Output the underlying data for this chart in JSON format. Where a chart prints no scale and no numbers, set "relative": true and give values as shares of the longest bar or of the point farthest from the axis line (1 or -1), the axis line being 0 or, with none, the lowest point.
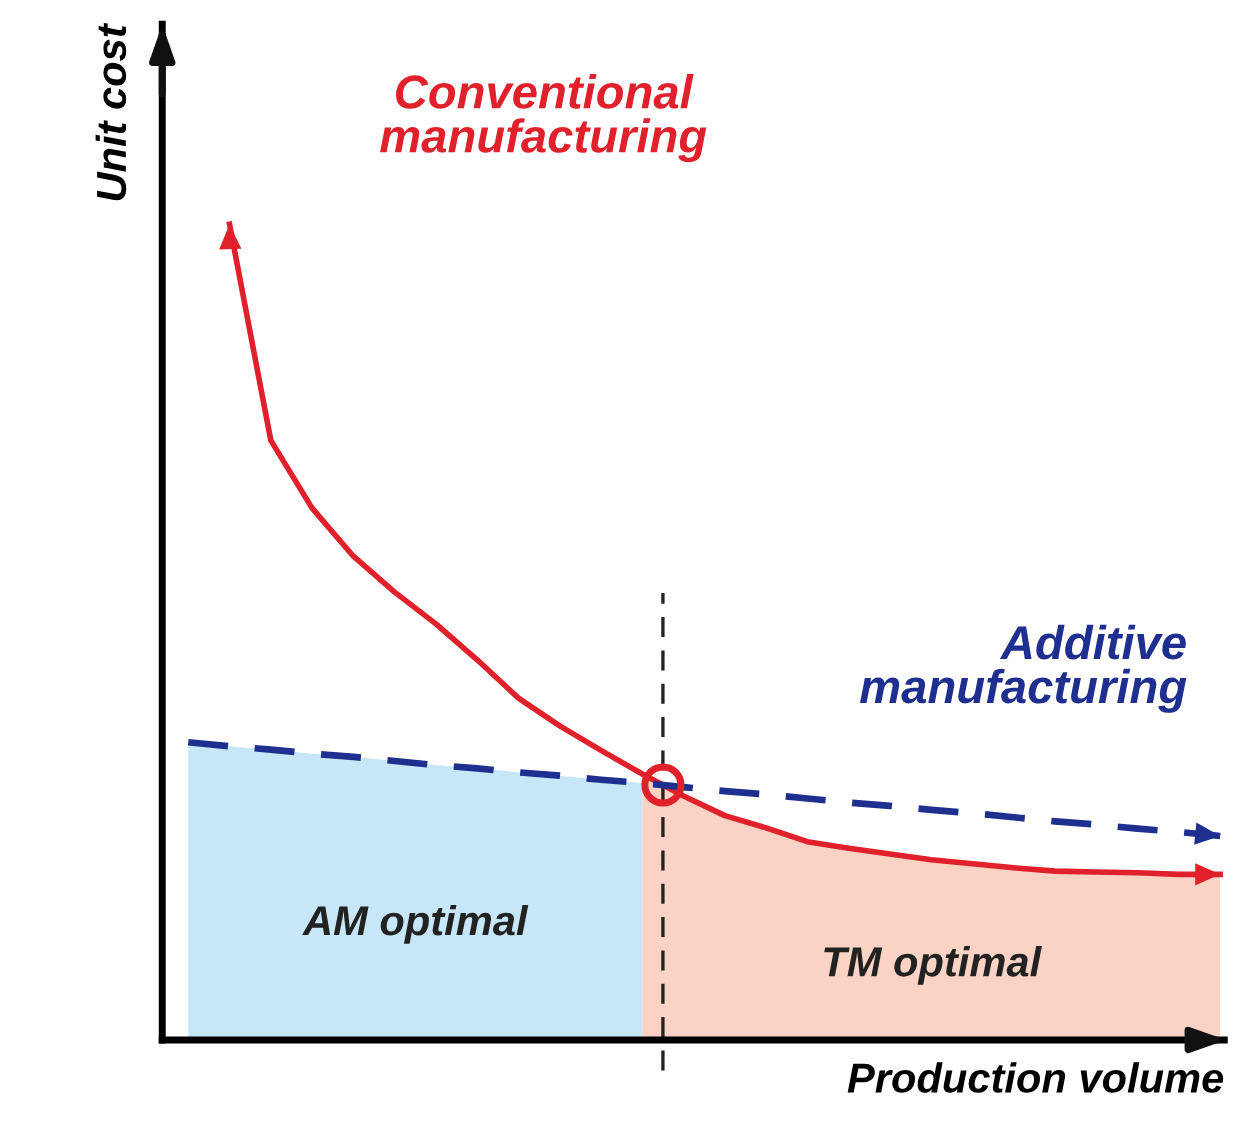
{
  "chart_data": {
    "type": "line",
    "relative": true,
    "xlabel": "Production volume",
    "ylabel": "Unit cost",
    "categories": [
      null,
      null,
      null,
      null,
      null,
      null,
      null,
      null,
      null,
      null,
      null,
      null,
      null,
      null,
      null,
      null,
      null,
      null,
      null,
      null,
      null,
      null,
      null,
      null,
      null,
      null
    ],
    "series": [
      {
        "name": "AM optimal",
        "type": "area",
        "color": "#c7e6f8",
        "values": [
          0.365,
          0.36,
          0.356,
          0.351,
          0.347,
          0.342,
          0.337,
          0.333,
          0.328,
          0.324,
          0.319,
          0.315,
          null,
          null,
          null,
          null,
          null,
          null,
          null,
          null,
          null,
          null,
          null,
          null,
          null,
          null
        ]
      },
      {
        "name": "TM optimal",
        "type": "area",
        "color": "#fad3c5",
        "values": [
          null,
          null,
          null,
          null,
          null,
          null,
          null,
          null,
          null,
          null,
          null,
          0.326,
          0.299,
          0.275,
          0.26,
          0.243,
          0.235,
          0.228,
          0.221,
          0.216,
          0.211,
          0.207,
          0.206,
          0.205,
          0.203,
          0.203
        ]
      },
      {
        "name": "Conventional manufacturing",
        "color": "#e0202a",
        "line_style": "solid",
        "values": [
          null,
          1.0,
          0.735,
          0.652,
          0.593,
          0.549,
          0.51,
          0.466,
          0.419,
          0.385,
          0.355,
          0.326,
          0.299,
          0.275,
          0.26,
          0.243,
          0.235,
          0.228,
          0.221,
          0.216,
          0.211,
          0.207,
          0.206,
          0.205,
          0.203,
          0.203
        ]
      },
      {
        "name": "Additive manufacturing",
        "color": "#1f2f8f",
        "line_style": "dashed",
        "values": [
          0.365,
          0.36,
          0.356,
          0.351,
          0.347,
          0.342,
          0.337,
          0.333,
          0.328,
          0.324,
          0.319,
          0.315,
          0.31,
          0.305,
          0.301,
          0.296,
          0.291,
          0.287,
          0.282,
          0.278,
          0.273,
          0.268,
          0.264,
          0.259,
          0.255,
          0.25
        ]
      }
    ],
    "legend": false
  }
}
